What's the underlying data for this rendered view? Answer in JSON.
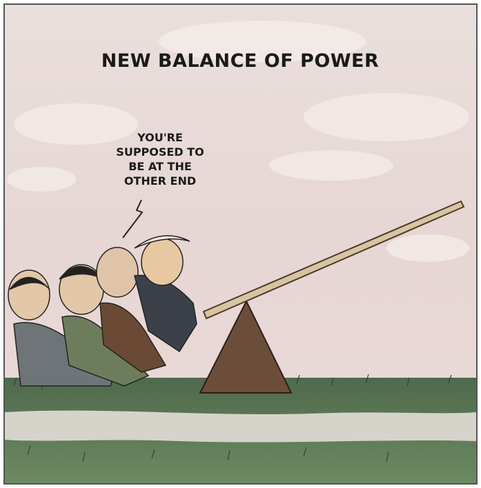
{
  "title": "NEW BALANCE OF POWER",
  "speech_bubble": {
    "lines": [
      "YOU'RE",
      "SUPPOSED TO",
      "BE AT THE",
      "OTHER END"
    ]
  }
}
